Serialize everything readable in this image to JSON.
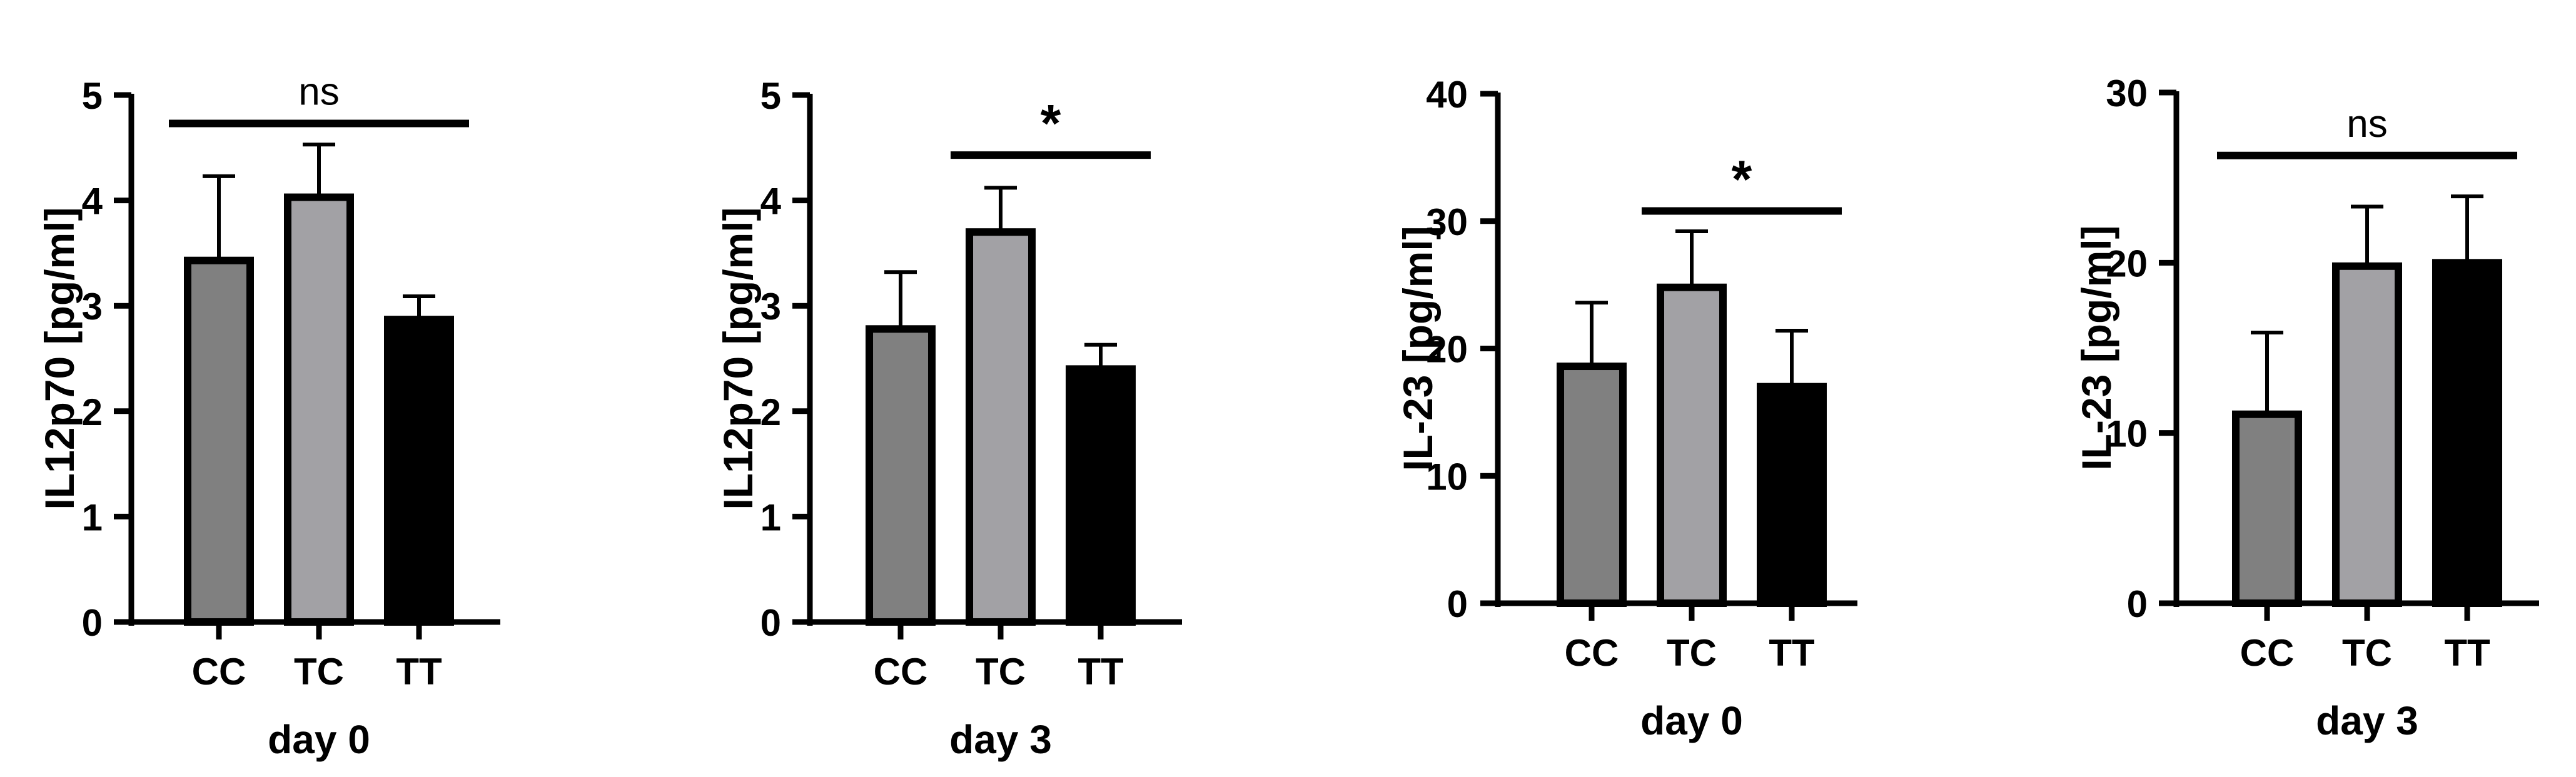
{
  "colors": {
    "CC": "#808080",
    "TC": "#a2a1a5",
    "TT": "#000000",
    "axis": "#000000"
  },
  "chart_data": [
    {
      "type": "bar",
      "categories": [
        "CC",
        "TC",
        "TT"
      ],
      "values": [
        3.43,
        4.03,
        2.87
      ],
      "errors": [
        0.8,
        0.5,
        0.22
      ],
      "xlabel": "day 0",
      "ylabel": "IL12p70 [pg/ml]",
      "ylim": [
        0,
        5
      ],
      "yticks": [
        "0",
        "1",
        "2",
        "3",
        "4",
        "5"
      ],
      "significance": {
        "from": "CC",
        "to": "TT",
        "label": "ns",
        "y": 4.73
      }
    },
    {
      "type": "bar",
      "categories": [
        "CC",
        "TC",
        "TT"
      ],
      "values": [
        2.78,
        3.7,
        2.4
      ],
      "errors": [
        0.54,
        0.42,
        0.23
      ],
      "xlabel": "day 3",
      "ylabel": "IL12p70 [pg/ml]",
      "ylim": [
        0,
        5
      ],
      "yticks": [
        "0",
        "1",
        "2",
        "3",
        "4",
        "5"
      ],
      "significance": {
        "from": "TC",
        "to": "TT",
        "label": "*",
        "y": 4.43
      }
    },
    {
      "type": "bar",
      "categories": [
        "CC",
        "TC",
        "TT"
      ],
      "values": [
        18.6,
        24.8,
        17.0
      ],
      "errors": [
        5.0,
        4.4,
        4.4
      ],
      "xlabel": "day 0",
      "ylabel": "IL-23 [pg/ml]",
      "ylim": [
        0,
        40
      ],
      "yticks": [
        "0",
        "10",
        "20",
        "30",
        "40"
      ],
      "significance": {
        "from": "TC",
        "to": "TT",
        "label": "*",
        "y": 30.8
      }
    },
    {
      "type": "bar",
      "categories": [
        "CC",
        "TC",
        "TT"
      ],
      "values": [
        11.1,
        19.8,
        20.0
      ],
      "errors": [
        4.8,
        3.5,
        3.9
      ],
      "xlabel": "day 3",
      "ylabel": "IL-23 [pg/ml]",
      "ylim": [
        0,
        30
      ],
      "yticks": [
        "0",
        "10",
        "20",
        "30"
      ],
      "significance": {
        "from": "CC",
        "to": "TT",
        "label": "ns",
        "y": 26.3
      }
    }
  ]
}
